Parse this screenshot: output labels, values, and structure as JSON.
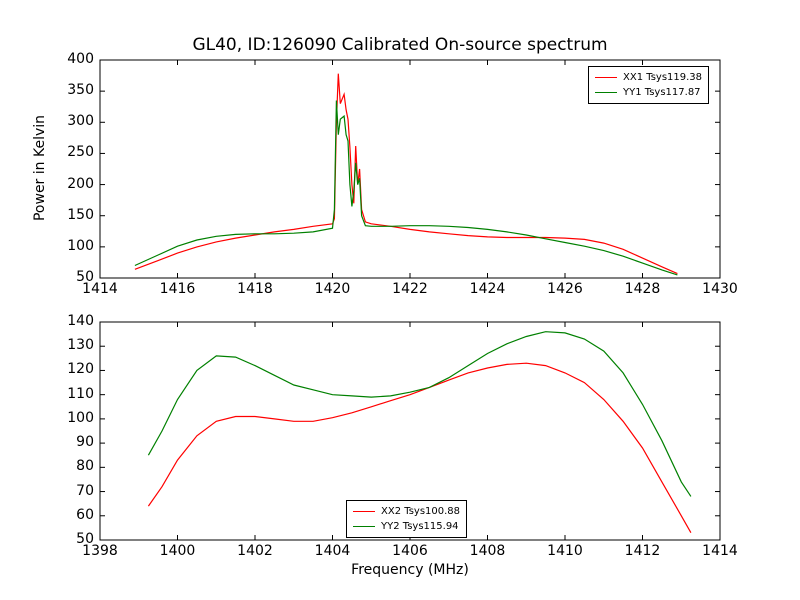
{
  "chart_data": [
    {
      "type": "line",
      "title": "GL40, ID:126090 Calibrated On-source spectrum",
      "ylabel": "Power in Kelvin",
      "xlabel": "",
      "xlim": [
        1414,
        1430
      ],
      "ylim": [
        50,
        400
      ],
      "xticks": [
        "1414",
        "1416",
        "1418",
        "1420",
        "1422",
        "1424",
        "1426",
        "1428",
        "1430"
      ],
      "yticks": [
        "50",
        "100",
        "150",
        "200",
        "250",
        "300",
        "350",
        "400"
      ],
      "legend_position": "top-right",
      "series": [
        {
          "name": "XX1 Tsys119.38",
          "color": "#ff0000",
          "points": [
            [
              1414.9,
              64
            ],
            [
              1415.5,
              78
            ],
            [
              1416,
              90
            ],
            [
              1416.5,
              100
            ],
            [
              1417,
              108
            ],
            [
              1417.5,
              114
            ],
            [
              1418,
              119
            ],
            [
              1418.5,
              124
            ],
            [
              1419,
              128
            ],
            [
              1419.5,
              133
            ],
            [
              1420,
              137
            ],
            [
              1420.05,
              145
            ],
            [
              1420.1,
              300
            ],
            [
              1420.15,
              378
            ],
            [
              1420.2,
              330
            ],
            [
              1420.3,
              345
            ],
            [
              1420.35,
              320
            ],
            [
              1420.4,
              305
            ],
            [
              1420.45,
              260
            ],
            [
              1420.5,
              200
            ],
            [
              1420.55,
              170
            ],
            [
              1420.6,
              262
            ],
            [
              1420.65,
              200
            ],
            [
              1420.7,
              225
            ],
            [
              1420.75,
              160
            ],
            [
              1420.85,
              140
            ],
            [
              1421,
              137
            ],
            [
              1421.5,
              133
            ],
            [
              1422,
              128
            ],
            [
              1422.5,
              124
            ],
            [
              1423,
              121
            ],
            [
              1423.5,
              118
            ],
            [
              1424,
              116
            ],
            [
              1424.5,
              115
            ],
            [
              1425,
              115
            ],
            [
              1425.5,
              115
            ],
            [
              1426,
              114
            ],
            [
              1426.5,
              112
            ],
            [
              1427,
              106
            ],
            [
              1427.5,
              96
            ],
            [
              1428,
              82
            ],
            [
              1428.5,
              68
            ],
            [
              1428.9,
              57
            ]
          ]
        },
        {
          "name": "YY1 Tsys117.87",
          "color": "#008000",
          "points": [
            [
              1414.9,
              70
            ],
            [
              1415.5,
              87
            ],
            [
              1416,
              101
            ],
            [
              1416.5,
              111
            ],
            [
              1417,
              117
            ],
            [
              1417.5,
              120
            ],
            [
              1418,
              121
            ],
            [
              1418.5,
              121
            ],
            [
              1419,
              122
            ],
            [
              1419.5,
              124
            ],
            [
              1420,
              130
            ],
            [
              1420.05,
              160
            ],
            [
              1420.1,
              335
            ],
            [
              1420.15,
              280
            ],
            [
              1420.2,
              305
            ],
            [
              1420.3,
              310
            ],
            [
              1420.35,
              280
            ],
            [
              1420.4,
              270
            ],
            [
              1420.45,
              200
            ],
            [
              1420.5,
              165
            ],
            [
              1420.55,
              190
            ],
            [
              1420.6,
              235
            ],
            [
              1420.65,
              200
            ],
            [
              1420.7,
              210
            ],
            [
              1420.75,
              150
            ],
            [
              1420.85,
              134
            ],
            [
              1421,
              133
            ],
            [
              1421.5,
              133
            ],
            [
              1422,
              134
            ],
            [
              1422.5,
              134
            ],
            [
              1423,
              133
            ],
            [
              1423.5,
              131
            ],
            [
              1424,
              128
            ],
            [
              1424.5,
              124
            ],
            [
              1425,
              119
            ],
            [
              1425.5,
              113
            ],
            [
              1426,
              107
            ],
            [
              1426.5,
              101
            ],
            [
              1427,
              94
            ],
            [
              1427.5,
              85
            ],
            [
              1428,
              74
            ],
            [
              1428.5,
              63
            ],
            [
              1428.9,
              55
            ]
          ]
        }
      ]
    },
    {
      "type": "line",
      "title": "",
      "ylabel": "",
      "xlabel": "Frequency (MHz)",
      "xlim": [
        1398,
        1414
      ],
      "ylim": [
        50,
        140
      ],
      "xticks": [
        "1398",
        "1400",
        "1402",
        "1404",
        "1406",
        "1408",
        "1410",
        "1412",
        "1414"
      ],
      "yticks": [
        "50",
        "60",
        "70",
        "80",
        "90",
        "100",
        "110",
        "120",
        "130",
        "140"
      ],
      "legend_position": "bottom-center",
      "series": [
        {
          "name": "XX2 Tsys100.88",
          "color": "#ff0000",
          "points": [
            [
              1399.25,
              64
            ],
            [
              1399.6,
              72
            ],
            [
              1400,
              83
            ],
            [
              1400.5,
              93
            ],
            [
              1401,
              99
            ],
            [
              1401.5,
              101
            ],
            [
              1402,
              101
            ],
            [
              1402.5,
              100
            ],
            [
              1403,
              99
            ],
            [
              1403.5,
              99
            ],
            [
              1404,
              100.5
            ],
            [
              1404.5,
              102.5
            ],
            [
              1405,
              105
            ],
            [
              1405.5,
              107.5
            ],
            [
              1406,
              110
            ],
            [
              1406.5,
              113
            ],
            [
              1407,
              116
            ],
            [
              1407.5,
              119
            ],
            [
              1408,
              121
            ],
            [
              1408.5,
              122.5
            ],
            [
              1409,
              123
            ],
            [
              1409.5,
              122
            ],
            [
              1410,
              119
            ],
            [
              1410.5,
              115
            ],
            [
              1411,
              108
            ],
            [
              1411.5,
              99
            ],
            [
              1412,
              88
            ],
            [
              1412.5,
              74
            ],
            [
              1413,
              60
            ],
            [
              1413.25,
              53
            ]
          ]
        },
        {
          "name": "YY2 Tsys115.94",
          "color": "#008000",
          "points": [
            [
              1399.25,
              85
            ],
            [
              1399.6,
              95
            ],
            [
              1400,
              108
            ],
            [
              1400.5,
              120
            ],
            [
              1401,
              126
            ],
            [
              1401.5,
              125.5
            ],
            [
              1402,
              122
            ],
            [
              1402.5,
              118
            ],
            [
              1403,
              114
            ],
            [
              1403.5,
              112
            ],
            [
              1404,
              110
            ],
            [
              1404.5,
              109.5
            ],
            [
              1405,
              109
            ],
            [
              1405.5,
              109.5
            ],
            [
              1406,
              111
            ],
            [
              1406.5,
              113
            ],
            [
              1407,
              117
            ],
            [
              1407.5,
              122
            ],
            [
              1408,
              127
            ],
            [
              1408.5,
              131
            ],
            [
              1409,
              134
            ],
            [
              1409.5,
              136
            ],
            [
              1410,
              135.5
            ],
            [
              1410.5,
              133
            ],
            [
              1411,
              128
            ],
            [
              1411.5,
              119
            ],
            [
              1412,
              106
            ],
            [
              1412.5,
              91
            ],
            [
              1413,
              74
            ],
            [
              1413.25,
              68
            ]
          ]
        }
      ]
    }
  ]
}
